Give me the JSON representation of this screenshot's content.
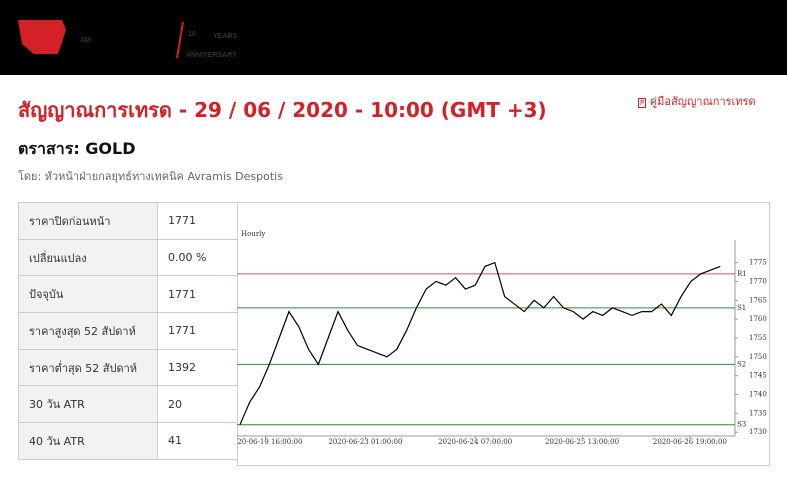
{
  "header": {
    "logo": "XM",
    "badge": "10",
    "badge_sub": "YEARS",
    "badge_caption": "ANNIVERSARY"
  },
  "title": "สัญญาณการเทรด - 29 / 06 / 2020 - 10:00 (GMT +3)",
  "guide_link": "คู่มือสัญญาณการเทรด",
  "instrument": "ตราสาร: GOLD",
  "author": "โดย: หัวหน้าฝ่ายกลยุทธ์ทางเทคนิค Avramis Despotis",
  "table": {
    "rows": [
      [
        "ราคาปิดก่อนหน้า",
        "1771"
      ],
      [
        "เปลี่ยนแปลง",
        "0.00 %"
      ],
      [
        "ปัจจุบัน",
        "1771"
      ],
      [
        "ราคาสูงสุด 52 สัปดาห์",
        "1771"
      ],
      [
        "ราคาต่ำสุด 52 สัปดาห์",
        "1392"
      ],
      [
        "30 วัน ATR",
        "20"
      ],
      [
        "40 วัน ATR",
        "41"
      ]
    ]
  },
  "chart_data": {
    "type": "line",
    "title": "Hourly",
    "color": "#000000",
    "values": [
      1732,
      1738,
      1742,
      1748,
      1755,
      1762,
      1758,
      1752,
      1748,
      1755,
      1762,
      1757,
      1753,
      1752,
      1751,
      1750,
      1752,
      1757,
      1763,
      1768,
      1770,
      1769,
      1771,
      1768,
      1769,
      1774,
      1775,
      1766,
      1764,
      1762,
      1765,
      1763,
      1766,
      1763,
      1762,
      1760,
      1762,
      1761,
      1763,
      1762,
      1761,
      1762,
      1762,
      1764,
      1761,
      1766,
      1770,
      1772,
      1773,
      1774
    ],
    "xlim": [
      -0.3,
      50.5
    ],
    "xticks": [
      {
        "value": 2.6,
        "label": "2020-06-19 16:00:00"
      },
      {
        "value": 12.8,
        "label": "2020-06-23 01:00:00"
      },
      {
        "value": 24,
        "label": "2020-06-24 07:00:00"
      },
      {
        "value": 34.9,
        "label": "2020-06-25 13:00:00"
      },
      {
        "value": 45.9,
        "label": "2020-06-26 19:00:00"
      }
    ],
    "ylim": [
      1729,
      1781
    ],
    "yticks": [
      1730,
      1735,
      1740,
      1745,
      1750,
      1755,
      1760,
      1765,
      1770,
      1775
    ],
    "levels": [
      {
        "name": "R1",
        "value": 1772,
        "color": "#d9534f"
      },
      {
        "name": "S1",
        "value": 1763,
        "color": "#2e8b2e"
      },
      {
        "name": "S2",
        "value": 1748,
        "color": "#2e8b2e"
      },
      {
        "name": "S3",
        "value": 1732,
        "color": "#2e8b2e"
      }
    ]
  }
}
